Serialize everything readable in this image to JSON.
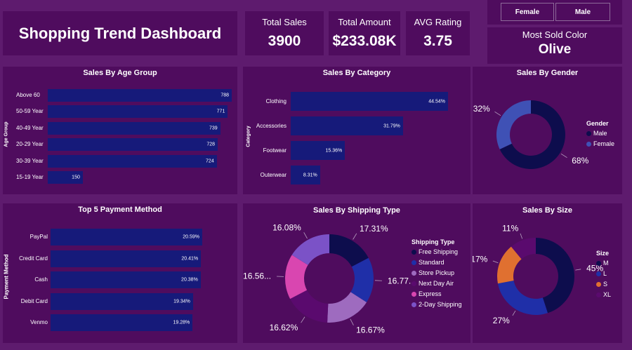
{
  "dashboard": {
    "title": "Shopping Trend Dashboard"
  },
  "kpis": {
    "total_sales": {
      "label": "Total Sales",
      "value": "3900"
    },
    "total_amount": {
      "label": "Total Amount",
      "value": "$233.08K"
    },
    "avg_rating": {
      "label": "AVG Rating",
      "value": "3.75"
    }
  },
  "slicer": {
    "female": "Female",
    "male": "Male"
  },
  "most_sold_color": {
    "label": "Most Sold Color",
    "value": "Olive"
  },
  "colors": {
    "background": "#5e1b6e",
    "panel": "#4f0c5e",
    "bar": "#161a7a"
  },
  "chart_data": [
    {
      "type": "bar",
      "orientation": "horizontal",
      "title": "Sales By Age Group",
      "ylabel": "Age Group",
      "categories": [
        "Above 60",
        "50-59 Year",
        "40-49 Year",
        "20-29 Year",
        "30-39 Year",
        "15-19 Year"
      ],
      "values": [
        788,
        771,
        739,
        728,
        724,
        150
      ],
      "labels": [
        "788",
        "771",
        "739",
        "728",
        "724",
        "150"
      ]
    },
    {
      "type": "bar",
      "orientation": "horizontal",
      "title": "Sales By Category",
      "ylabel": "Category",
      "categories": [
        "Clothing",
        "Accessories",
        "Footwear",
        "Outerwear"
      ],
      "values": [
        44.54,
        31.79,
        15.36,
        8.31
      ],
      "labels": [
        "44.54%",
        "31.79%",
        "15.36%",
        "8.31%"
      ]
    },
    {
      "type": "pie",
      "donut": true,
      "title": "Sales By Gender",
      "legend_title": "Gender",
      "categories": [
        "Male",
        "Female"
      ],
      "values": [
        68,
        32
      ],
      "labels": [
        "68%",
        "32%"
      ],
      "colors": [
        "#0d0d4d",
        "#3f51b5"
      ]
    },
    {
      "type": "bar",
      "orientation": "horizontal",
      "title": "Top 5 Payment Method",
      "ylabel": "Payment Method",
      "categories": [
        "PayPal",
        "Credit Card",
        "Cash",
        "Debit Card",
        "Venmo"
      ],
      "values": [
        20.59,
        20.41,
        20.38,
        19.34,
        19.28
      ],
      "labels": [
        "20.59%",
        "20.41%",
        "20.38%",
        "19.34%",
        "19.28%"
      ]
    },
    {
      "type": "pie",
      "donut": true,
      "title": "Sales By Shipping Type",
      "legend_title": "Shipping Type",
      "categories": [
        "Free Shipping",
        "Standard",
        "Store Pickup",
        "Next Day Air",
        "Express",
        "2-Day Shipping"
      ],
      "values": [
        17.31,
        16.77,
        16.67,
        16.62,
        16.56,
        16.08
      ],
      "labels": [
        "17.31%",
        "16.77...",
        "16.67%",
        "16.62%",
        "16.56...",
        "16.08%"
      ],
      "colors": [
        "#0d0d4d",
        "#1f2fa8",
        "#9e6bbf",
        "#5a0a6e",
        "#d946b0",
        "#7b52c7"
      ]
    },
    {
      "type": "pie",
      "donut": true,
      "title": "Sales By Size",
      "legend_title": "Size",
      "categories": [
        "M",
        "L",
        "S",
        "XL"
      ],
      "values": [
        45,
        27,
        17,
        11
      ],
      "labels": [
        "45%",
        "27%",
        "17%",
        "11%"
      ],
      "colors": [
        "#0d0d4d",
        "#1f2fa8",
        "#e07030",
        "#5a0a6e"
      ]
    }
  ]
}
